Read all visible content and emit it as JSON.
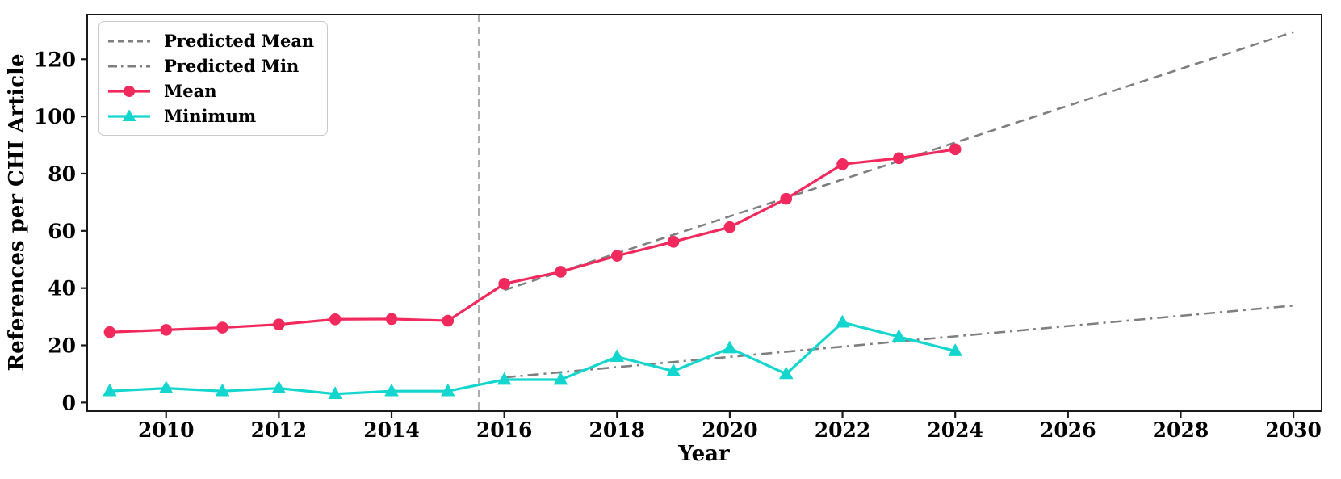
{
  "legend": {
    "items": [
      {
        "label": "Predicted Mean",
        "style": "dashed",
        "color": "#7f7f7f"
      },
      {
        "label": "Predicted Min",
        "style": "dashdot",
        "color": "#7f7f7f"
      },
      {
        "label": "Mean",
        "style": "solid-circle",
        "color": "#f2295d"
      },
      {
        "label": "Minimum",
        "style": "solid-triangle",
        "color": "#15d6ce"
      }
    ]
  },
  "chart_data": {
    "type": "line",
    "title": "",
    "xlabel": "Year",
    "ylabel": "References per CHI Article",
    "x_range": [
      2008.6,
      2030.5
    ],
    "y_range": [
      -3,
      135.6
    ],
    "x_ticks": [
      2010,
      2012,
      2014,
      2016,
      2018,
      2020,
      2022,
      2024,
      2026,
      2028,
      2030
    ],
    "y_ticks": [
      0,
      20,
      40,
      60,
      80,
      100,
      120
    ],
    "grid": false,
    "legend_position": "upper left",
    "reference_line": {
      "x": 2015.55,
      "style": "dashed",
      "color": "#adadad"
    },
    "series": [
      {
        "name": "Predicted Mean",
        "style": "dashed",
        "color": "#7f7f7f",
        "x": [
          2016,
          2030
        ],
        "y": [
          39.3,
          129.5
        ]
      },
      {
        "name": "Predicted Min",
        "style": "dashdot",
        "color": "#7f7f7f",
        "x": [
          2016,
          2030
        ],
        "y": [
          8.8,
          33.9
        ]
      },
      {
        "name": "Mean",
        "style": "solid",
        "marker": "circle",
        "color": "#f2295d",
        "x": [
          2009,
          2010,
          2011,
          2012,
          2013,
          2014,
          2015,
          2016,
          2017,
          2018,
          2019,
          2020,
          2021,
          2022,
          2023,
          2024
        ],
        "y": [
          24.6,
          25.4,
          26.2,
          27.3,
          29.1,
          29.2,
          28.6,
          41.5,
          45.7,
          51.3,
          56.2,
          61.3,
          71.2,
          83.3,
          85.4,
          88.5
        ]
      },
      {
        "name": "Minimum",
        "style": "solid",
        "marker": "triangle",
        "color": "#15d6ce",
        "x": [
          2009,
          2010,
          2011,
          2012,
          2013,
          2014,
          2015,
          2016,
          2017,
          2018,
          2019,
          2020,
          2021,
          2022,
          2023,
          2024
        ],
        "y": [
          4,
          5,
          4,
          5,
          3,
          4,
          4,
          8,
          8,
          16,
          11,
          19,
          10,
          28,
          23,
          18
        ]
      }
    ]
  }
}
